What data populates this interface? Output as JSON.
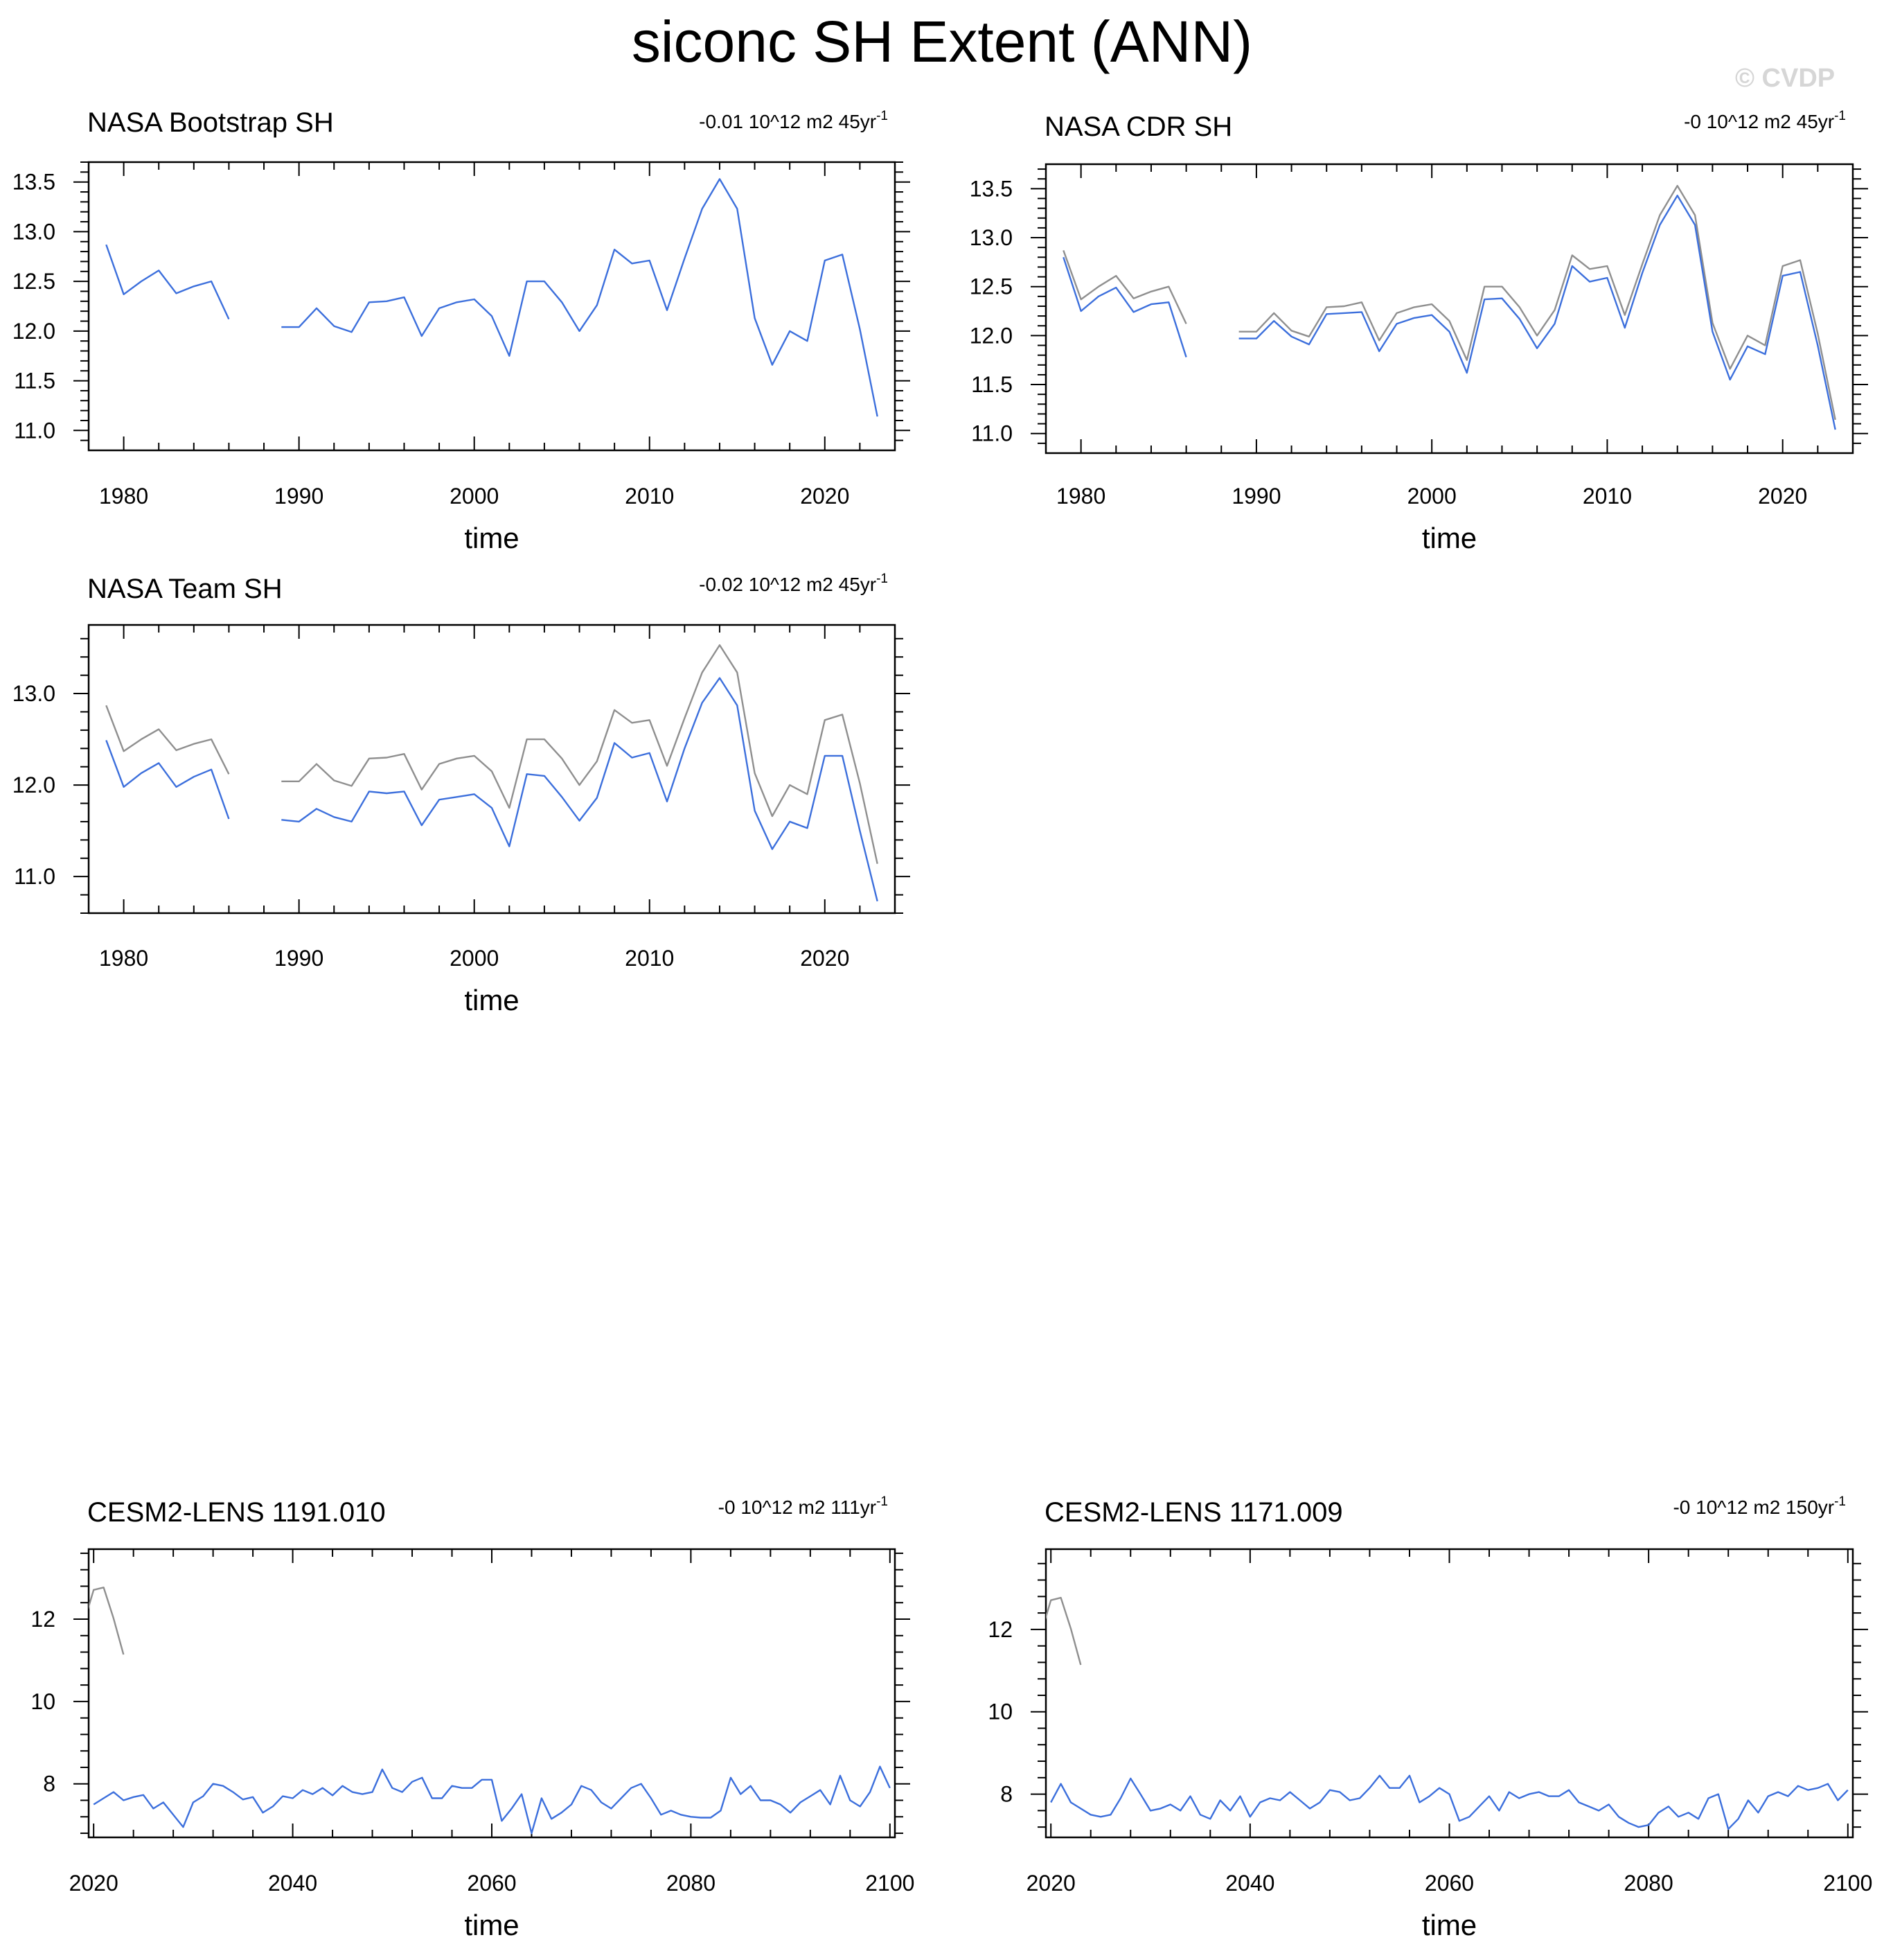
{
  "title": "siconc SH Extent (ANN)",
  "watermark": "© CVDP",
  "colors": {
    "model": "#3c6fdc",
    "reference": "#8f8f8f",
    "axis": "#000000"
  },
  "chart_data": [
    {
      "type": "line",
      "title": "NASA Bootstrap SH",
      "trend": {
        "value": "-0.01 10^12 m2 45yr",
        "exponent": "-1"
      },
      "xlabel": "time",
      "ylabel": "",
      "xlim": [
        1978,
        2024
      ],
      "ylim": [
        10.8,
        13.7
      ],
      "xticks": [
        1980,
        1990,
        2000,
        2010,
        2020
      ],
      "xtick_labels": [
        "1980",
        "1990",
        "2000",
        "2010",
        "2020"
      ],
      "yticks": [
        11.0,
        11.5,
        12.0,
        12.5,
        13.0,
        13.5
      ],
      "ytick_labels": [
        "11.0",
        "11.5",
        "12.0",
        "12.5",
        "13.0",
        "13.5"
      ],
      "series": [
        {
          "name": "NASA Bootstrap SH",
          "role": "model",
          "x": [
            1979,
            1980,
            1981,
            1982,
            1983,
            1984,
            1985,
            1986,
            1987,
            1988,
            1989,
            1990,
            1991,
            1992,
            1993,
            1994,
            1995,
            1996,
            1997,
            1998,
            1999,
            2000,
            2001,
            2002,
            2003,
            2004,
            2005,
            2006,
            2007,
            2008,
            2009,
            2010,
            2011,
            2012,
            2013,
            2014,
            2015,
            2016,
            2017,
            2018,
            2019,
            2020,
            2021,
            2022,
            2023
          ],
          "values": [
            12.87,
            12.37,
            12.5,
            12.61,
            12.38,
            12.45,
            12.5,
            12.12,
            null,
            null,
            12.04,
            12.04,
            12.23,
            12.05,
            11.99,
            12.29,
            12.3,
            12.34,
            11.95,
            12.23,
            12.29,
            12.32,
            12.15,
            11.75,
            12.5,
            12.5,
            12.29,
            12.0,
            12.26,
            12.82,
            12.68,
            12.71,
            12.21,
            12.73,
            13.23,
            13.53,
            13.23,
            12.13,
            11.66,
            12.0,
            11.9,
            12.71,
            12.77,
            12.02,
            11.14
          ]
        }
      ]
    },
    {
      "type": "line",
      "title": "NASA CDR SH",
      "trend": {
        "value": "-0 10^12 m2 45yr",
        "exponent": "-1"
      },
      "xlabel": "time",
      "ylabel": "",
      "xlim": [
        1978,
        2024
      ],
      "ylim": [
        10.8,
        13.75
      ],
      "xticks": [
        1980,
        1990,
        2000,
        2010,
        2020
      ],
      "xtick_labels": [
        "1980",
        "1990",
        "2000",
        "2010",
        "2020"
      ],
      "yticks": [
        11.0,
        11.5,
        12.0,
        12.5,
        13.0,
        13.5
      ],
      "ytick_labels": [
        "11.0",
        "11.5",
        "12.0",
        "12.5",
        "13.0",
        "13.5"
      ],
      "series": [
        {
          "name": "NASA Bootstrap SH",
          "role": "reference",
          "x": [
            1979,
            1980,
            1981,
            1982,
            1983,
            1984,
            1985,
            1986,
            1987,
            1988,
            1989,
            1990,
            1991,
            1992,
            1993,
            1994,
            1995,
            1996,
            1997,
            1998,
            1999,
            2000,
            2001,
            2002,
            2003,
            2004,
            2005,
            2006,
            2007,
            2008,
            2009,
            2010,
            2011,
            2012,
            2013,
            2014,
            2015,
            2016,
            2017,
            2018,
            2019,
            2020,
            2021,
            2022,
            2023
          ],
          "values": [
            12.87,
            12.37,
            12.5,
            12.61,
            12.38,
            12.45,
            12.5,
            12.12,
            null,
            null,
            12.04,
            12.04,
            12.23,
            12.05,
            11.99,
            12.29,
            12.3,
            12.34,
            11.95,
            12.23,
            12.29,
            12.32,
            12.15,
            11.75,
            12.5,
            12.5,
            12.29,
            12.0,
            12.26,
            12.82,
            12.68,
            12.71,
            12.21,
            12.73,
            13.23,
            13.53,
            13.23,
            12.13,
            11.66,
            12.0,
            11.9,
            12.71,
            12.77,
            12.02,
            11.14
          ]
        },
        {
          "name": "NASA CDR SH",
          "role": "model",
          "x": [
            1979,
            1980,
            1981,
            1982,
            1983,
            1984,
            1985,
            1986,
            1987,
            1988,
            1989,
            1990,
            1991,
            1992,
            1993,
            1994,
            1995,
            1996,
            1997,
            1998,
            1999,
            2000,
            2001,
            2002,
            2003,
            2004,
            2005,
            2006,
            2007,
            2008,
            2009,
            2010,
            2011,
            2012,
            2013,
            2014,
            2015,
            2016,
            2017,
            2018,
            2019,
            2020,
            2021,
            2022,
            2023
          ],
          "values": [
            12.8,
            12.25,
            12.4,
            12.49,
            12.24,
            12.32,
            12.34,
            11.78,
            null,
            null,
            11.97,
            11.97,
            12.15,
            11.99,
            11.91,
            12.22,
            12.23,
            12.24,
            11.84,
            12.12,
            12.18,
            12.21,
            12.04,
            11.62,
            12.37,
            12.38,
            12.17,
            11.87,
            12.12,
            12.71,
            12.55,
            12.59,
            12.08,
            12.64,
            13.13,
            13.43,
            13.13,
            12.04,
            11.55,
            11.89,
            11.81,
            12.61,
            12.65,
            11.9,
            11.04
          ]
        }
      ]
    },
    {
      "type": "line",
      "title": "NASA Team SH",
      "trend": {
        "value": "-0.02 10^12 m2 45yr",
        "exponent": "-1"
      },
      "xlabel": "time",
      "ylabel": "",
      "xlim": [
        1978,
        2024
      ],
      "ylim": [
        10.6,
        13.75
      ],
      "xticks": [
        1980,
        1990,
        2000,
        2010,
        2020
      ],
      "xtick_labels": [
        "1980",
        "1990",
        "2000",
        "2010",
        "2020"
      ],
      "yticks": [
        11.0,
        12.0,
        13.0
      ],
      "ytick_labels": [
        "11.0",
        "12.0",
        "13.0"
      ],
      "series": [
        {
          "name": "NASA Bootstrap SH",
          "role": "reference",
          "x": [
            1979,
            1980,
            1981,
            1982,
            1983,
            1984,
            1985,
            1986,
            1987,
            1988,
            1989,
            1990,
            1991,
            1992,
            1993,
            1994,
            1995,
            1996,
            1997,
            1998,
            1999,
            2000,
            2001,
            2002,
            2003,
            2004,
            2005,
            2006,
            2007,
            2008,
            2009,
            2010,
            2011,
            2012,
            2013,
            2014,
            2015,
            2016,
            2017,
            2018,
            2019,
            2020,
            2021,
            2022,
            2023
          ],
          "values": [
            12.87,
            12.37,
            12.5,
            12.61,
            12.38,
            12.45,
            12.5,
            12.12,
            null,
            null,
            12.04,
            12.04,
            12.23,
            12.05,
            11.99,
            12.29,
            12.3,
            12.34,
            11.95,
            12.23,
            12.29,
            12.32,
            12.15,
            11.75,
            12.5,
            12.5,
            12.29,
            12.0,
            12.26,
            12.82,
            12.68,
            12.71,
            12.21,
            12.73,
            13.23,
            13.53,
            13.23,
            12.13,
            11.66,
            12.0,
            11.9,
            12.71,
            12.77,
            12.02,
            11.14
          ]
        },
        {
          "name": "NASA Team SH",
          "role": "model",
          "x": [
            1979,
            1980,
            1981,
            1982,
            1983,
            1984,
            1985,
            1986,
            1987,
            1988,
            1989,
            1990,
            1991,
            1992,
            1993,
            1994,
            1995,
            1996,
            1997,
            1998,
            1999,
            2000,
            2001,
            2002,
            2003,
            2004,
            2005,
            2006,
            2007,
            2008,
            2009,
            2010,
            2011,
            2012,
            2013,
            2014,
            2015,
            2016,
            2017,
            2018,
            2019,
            2020,
            2021,
            2022,
            2023
          ],
          "values": [
            12.49,
            11.98,
            12.13,
            12.24,
            11.98,
            12.09,
            12.17,
            11.63,
            null,
            null,
            11.62,
            11.6,
            11.74,
            11.65,
            11.6,
            11.93,
            11.91,
            11.93,
            11.56,
            11.84,
            11.87,
            11.9,
            11.75,
            11.33,
            12.12,
            12.1,
            11.87,
            11.61,
            11.86,
            12.46,
            12.3,
            12.35,
            11.82,
            12.4,
            12.9,
            13.17,
            12.87,
            11.72,
            11.3,
            11.6,
            11.53,
            12.32,
            12.32,
            11.5,
            10.73
          ]
        }
      ]
    },
    {
      "type": "line",
      "title": "CESM2-LENS 1191.010",
      "trend": {
        "value": "-0 10^12 m2 111yr",
        "exponent": "-1"
      },
      "xlabel": "time",
      "ylabel": "",
      "xlim": [
        2019.5,
        2100.5
      ],
      "ylim": [
        6.7,
        13.7
      ],
      "xticks": [
        2020,
        2040,
        2060,
        2080,
        2100
      ],
      "xtick_labels": [
        "2020",
        "2040",
        "2060",
        "2080",
        "2100"
      ],
      "yticks": [
        8,
        10,
        12
      ],
      "ytick_labels": [
        "8",
        "10",
        "12"
      ],
      "series": [
        {
          "name": "NASA Bootstrap SH",
          "role": "reference",
          "x": [
            2019,
            2020,
            2021,
            2022,
            2023
          ],
          "values": [
            11.9,
            12.71,
            12.77,
            12.02,
            11.14
          ]
        },
        {
          "name": "CESM2-LENS 1191.010",
          "role": "model",
          "x": [
            2020,
            2021,
            2022,
            2023,
            2024,
            2025,
            2026,
            2027,
            2028,
            2029,
            2030,
            2031,
            2032,
            2033,
            2034,
            2035,
            2036,
            2037,
            2038,
            2039,
            2040,
            2041,
            2042,
            2043,
            2044,
            2045,
            2046,
            2047,
            2048,
            2049,
            2050,
            2051,
            2052,
            2053,
            2054,
            2055,
            2056,
            2057,
            2058,
            2059,
            2060,
            2061,
            2062,
            2063,
            2064,
            2065,
            2066,
            2067,
            2068,
            2069,
            2070,
            2071,
            2072,
            2073,
            2074,
            2075,
            2076,
            2077,
            2078,
            2079,
            2080,
            2081,
            2082,
            2083,
            2084,
            2085,
            2086,
            2087,
            2088,
            2089,
            2090,
            2091,
            2092,
            2093,
            2094,
            2095,
            2096,
            2097,
            2098,
            2099,
            2100
          ],
          "values": [
            7.5,
            7.65,
            7.8,
            7.6,
            7.68,
            7.73,
            7.4,
            7.55,
            7.25,
            6.95,
            7.55,
            7.7,
            8.0,
            7.95,
            7.8,
            7.62,
            7.68,
            7.3,
            7.45,
            7.7,
            7.65,
            7.85,
            7.75,
            7.9,
            7.72,
            7.95,
            7.8,
            7.75,
            7.8,
            8.35,
            7.9,
            7.8,
            8.05,
            8.15,
            7.65,
            7.65,
            7.95,
            7.9,
            7.9,
            8.1,
            8.1,
            7.1,
            7.4,
            7.75,
            6.8,
            7.65,
            7.15,
            7.3,
            7.5,
            7.95,
            7.85,
            7.55,
            7.4,
            7.65,
            7.9,
            8.0,
            7.65,
            7.25,
            7.35,
            7.25,
            7.2,
            7.18,
            7.18,
            7.35,
            8.15,
            7.75,
            7.95,
            7.6,
            7.6,
            7.5,
            7.3,
            7.55,
            7.7,
            7.85,
            7.5,
            8.2,
            7.6,
            7.45,
            7.8,
            8.42,
            7.9
          ]
        }
      ]
    },
    {
      "type": "line",
      "title": "CESM2-LENS 1171.009",
      "trend": {
        "value": "-0 10^12 m2 150yr",
        "exponent": "-1"
      },
      "xlabel": "time",
      "ylabel": "",
      "xlim": [
        2019.5,
        2100.5
      ],
      "ylim": [
        6.95,
        13.95
      ],
      "xticks": [
        2020,
        2040,
        2060,
        2080,
        2100
      ],
      "xtick_labels": [
        "2020",
        "2040",
        "2060",
        "2080",
        "2100"
      ],
      "yticks": [
        8,
        10,
        12
      ],
      "ytick_labels": [
        "8",
        "10",
        "12"
      ],
      "series": [
        {
          "name": "NASA Bootstrap SH",
          "role": "reference",
          "x": [
            2019,
            2020,
            2021,
            2022,
            2023
          ],
          "values": [
            11.9,
            12.71,
            12.77,
            12.02,
            11.14
          ]
        },
        {
          "name": "CESM2-LENS 1171.009",
          "role": "model",
          "x": [
            2020,
            2021,
            2022,
            2023,
            2024,
            2025,
            2026,
            2027,
            2028,
            2029,
            2030,
            2031,
            2032,
            2033,
            2034,
            2035,
            2036,
            2037,
            2038,
            2039,
            2040,
            2041,
            2042,
            2043,
            2044,
            2045,
            2046,
            2047,
            2048,
            2049,
            2050,
            2051,
            2052,
            2053,
            2054,
            2055,
            2056,
            2057,
            2058,
            2059,
            2060,
            2061,
            2062,
            2063,
            2064,
            2065,
            2066,
            2067,
            2068,
            2069,
            2070,
            2071,
            2072,
            2073,
            2074,
            2075,
            2076,
            2077,
            2078,
            2079,
            2080,
            2081,
            2082,
            2083,
            2084,
            2085,
            2086,
            2087,
            2088,
            2089,
            2090,
            2091,
            2092,
            2093,
            2094,
            2095,
            2096,
            2097,
            2098,
            2099,
            2100
          ],
          "values": [
            7.8,
            8.25,
            7.8,
            7.65,
            7.5,
            7.45,
            7.5,
            7.9,
            8.38,
            8.0,
            7.6,
            7.65,
            7.75,
            7.6,
            7.95,
            7.5,
            7.4,
            7.85,
            7.6,
            7.95,
            7.45,
            7.8,
            7.9,
            7.85,
            8.05,
            7.85,
            7.65,
            7.8,
            8.1,
            8.05,
            7.85,
            7.9,
            8.15,
            8.45,
            8.15,
            8.15,
            8.45,
            7.8,
            7.95,
            8.15,
            8.0,
            7.35,
            7.45,
            7.7,
            7.95,
            7.6,
            8.05,
            7.9,
            8.0,
            8.05,
            7.95,
            7.95,
            8.1,
            7.8,
            7.7,
            7.6,
            7.75,
            7.45,
            7.3,
            7.2,
            7.25,
            7.55,
            7.7,
            7.45,
            7.55,
            7.4,
            7.9,
            8.0,
            7.15,
            7.4,
            7.85,
            7.55,
            7.95,
            8.05,
            7.95,
            8.2,
            8.1,
            8.15,
            8.25,
            7.85,
            8.1
          ]
        }
      ]
    }
  ]
}
